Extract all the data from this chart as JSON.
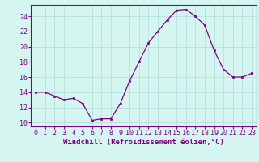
{
  "x": [
    0,
    1,
    2,
    3,
    4,
    5,
    6,
    7,
    8,
    9,
    10,
    11,
    12,
    13,
    14,
    15,
    16,
    17,
    18,
    19,
    20,
    21,
    22,
    23
  ],
  "y": [
    14.0,
    14.0,
    13.5,
    13.0,
    13.2,
    12.5,
    10.3,
    10.5,
    10.5,
    12.5,
    15.5,
    18.0,
    20.5,
    22.0,
    23.5,
    24.8,
    24.9,
    24.0,
    22.8,
    19.5,
    17.0,
    16.0,
    16.0,
    16.5
  ],
  "line_color": "#800080",
  "marker": "s",
  "marker_size": 2,
  "bg_color": "#d4f5f0",
  "grid_color": "#b0ddd8",
  "xlabel": "Windchill (Refroidissement éolien,°C)",
  "ylabel_ticks": [
    10,
    12,
    14,
    16,
    18,
    20,
    22,
    24
  ],
  "xlim": [
    -0.5,
    23.5
  ],
  "ylim": [
    9.5,
    25.5
  ],
  "xticks": [
    0,
    1,
    2,
    3,
    4,
    5,
    6,
    7,
    8,
    9,
    10,
    11,
    12,
    13,
    14,
    15,
    16,
    17,
    18,
    19,
    20,
    21,
    22,
    23
  ],
  "axis_color": "#800080",
  "tick_color": "#800080",
  "tick_fontsize": 6,
  "xlabel_fontsize": 6.5,
  "xlabel_fontweight": "bold"
}
